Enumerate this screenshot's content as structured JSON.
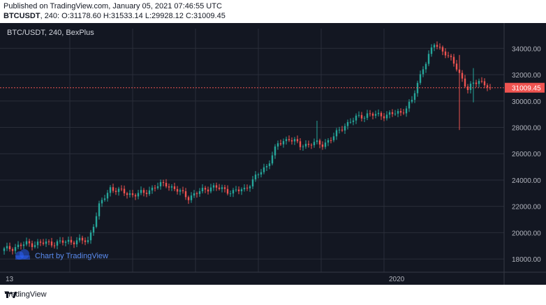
{
  "header": {
    "published": "Published on TradingView.com, January 05, 2021 07:46:55 UTC",
    "symbol": "BTCUSDT",
    "interval": "240",
    "ohlc": "O:31178.60 H:31533.14 L:29928.12 C:31009.45"
  },
  "legend": {
    "title": "BTC/USDT, 240, BexPlus"
  },
  "watermark": "Chart by TradingView",
  "footer_brand": "TradingView",
  "colors": {
    "background": "#131722",
    "up": "#26a69a",
    "down": "#ef5350",
    "grid": "#2a2e39",
    "axis_text": "#b2b5be",
    "price_line": "#ef5350"
  },
  "chart_data": {
    "type": "candlestick",
    "title": "BTC/USDT, 240, BexPlus",
    "ylim": [
      17000,
      35500
    ],
    "yticks": [
      18000,
      20000,
      22000,
      24000,
      26000,
      28000,
      30000,
      32000,
      34000
    ],
    "ytick_labels": [
      "18000.00",
      "20000.00",
      "22000.00",
      "24000.00",
      "26000.00",
      "28000.00",
      "30000.00",
      "32000.00",
      "34000.00"
    ],
    "xtick_labels": [
      "13",
      "2020"
    ],
    "last_price": 31009.45,
    "last_price_label": "31009.45",
    "close_path": [
      [
        0,
        18700
      ],
      [
        8,
        19150
      ],
      [
        14,
        19200
      ],
      [
        20,
        19250
      ],
      [
        26,
        19400
      ],
      [
        30,
        19350
      ],
      [
        34,
        22000
      ],
      [
        38,
        23400
      ],
      [
        42,
        23100
      ],
      [
        46,
        22900
      ],
      [
        50,
        23000
      ],
      [
        54,
        23500
      ],
      [
        58,
        23700
      ],
      [
        62,
        23200
      ],
      [
        66,
        22700
      ],
      [
        70,
        23100
      ],
      [
        74,
        23500
      ],
      [
        78,
        23300
      ],
      [
        82,
        23100
      ],
      [
        86,
        23300
      ],
      [
        90,
        24200
      ],
      [
        94,
        25100
      ],
      [
        98,
        26700
      ],
      [
        102,
        27200
      ],
      [
        106,
        26600
      ],
      [
        110,
        26800
      ],
      [
        114,
        26700
      ],
      [
        118,
        27300
      ],
      [
        122,
        28200
      ],
      [
        126,
        28700
      ],
      [
        130,
        29000
      ],
      [
        134,
        28900
      ],
      [
        138,
        29000
      ],
      [
        142,
        29100
      ],
      [
        146,
        30000
      ],
      [
        150,
        32600
      ],
      [
        154,
        34300
      ],
      [
        158,
        33700
      ],
      [
        162,
        32500
      ],
      [
        166,
        30900
      ],
      [
        170,
        31600
      ],
      [
        174,
        31009
      ]
    ],
    "wick_range": 280,
    "spikes": [
      {
        "idx": 112,
        "low": 27800,
        "high": 28500
      },
      {
        "idx": 163,
        "low": 27800,
        "high": 33500
      },
      {
        "idx": 168,
        "low": 29900,
        "high": 32500
      }
    ]
  }
}
